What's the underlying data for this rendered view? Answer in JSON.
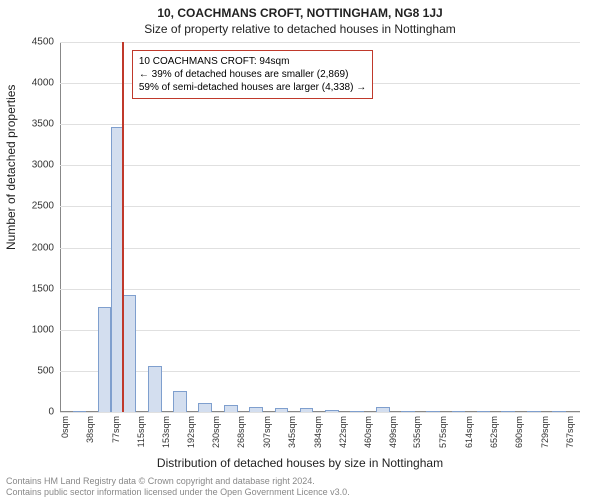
{
  "chart": {
    "type": "histogram",
    "title_line1": "10, COACHMANS CROFT, NOTTINGHAM, NG8 1JJ",
    "title_line2": "Size of property relative to detached houses in Nottingham",
    "ylabel": "Number of detached properties",
    "xlabel": "Distribution of detached houses by size in Nottingham",
    "title_fontsize": 12,
    "label_fontsize": 12,
    "tick_fontsize": 10,
    "background_color": "#ffffff",
    "grid_color": "#e0e0e0",
    "bar_fill": "#d3deef",
    "bar_border": "#7f9fce",
    "marker_color": "#c0392b",
    "annotation_border": "#c0392b",
    "ylim": [
      0,
      4500
    ],
    "ytick_step": 500,
    "yticks": [
      0,
      500,
      1000,
      1500,
      2000,
      2500,
      3000,
      3500,
      4000,
      4500
    ],
    "xticks": [
      0,
      38,
      77,
      115,
      153,
      192,
      230,
      268,
      307,
      345,
      384,
      422,
      460,
      499,
      535,
      575,
      614,
      652,
      690,
      729,
      767
    ],
    "x_max": 790,
    "xtick_suffix": "sqm",
    "bin_width": 38,
    "bars": [
      {
        "x_start": 19,
        "value": 10
      },
      {
        "x_start": 57,
        "value": 1280
      },
      {
        "x_start": 77,
        "value": 3470
      },
      {
        "x_start": 95,
        "value": 1420
      },
      {
        "x_start": 134,
        "value": 560
      },
      {
        "x_start": 172,
        "value": 260
      },
      {
        "x_start": 210,
        "value": 110
      },
      {
        "x_start": 249,
        "value": 80
      },
      {
        "x_start": 287,
        "value": 55
      },
      {
        "x_start": 326,
        "value": 50
      },
      {
        "x_start": 364,
        "value": 45
      },
      {
        "x_start": 403,
        "value": 28
      },
      {
        "x_start": 441,
        "value": 10
      },
      {
        "x_start": 480,
        "value": 55
      },
      {
        "x_start": 518,
        "value": 8
      },
      {
        "x_start": 556,
        "value": 6
      },
      {
        "x_start": 595,
        "value": 5
      },
      {
        "x_start": 633,
        "value": 5
      },
      {
        "x_start": 670,
        "value": 5
      },
      {
        "x_start": 710,
        "value": 4
      },
      {
        "x_start": 748,
        "value": 4
      }
    ],
    "marker_x": 94,
    "annotation_lines": [
      "10 COACHMANS CROFT: 94sqm",
      "← 39% of detached houses are smaller (2,869)",
      "59% of semi-detached houses are larger (4,338) →"
    ],
    "footer_line1": "Contains HM Land Registry data © Crown copyright and database right 2024.",
    "footer_line2": "Contains public sector information licensed under the Open Government Licence v3.0."
  }
}
